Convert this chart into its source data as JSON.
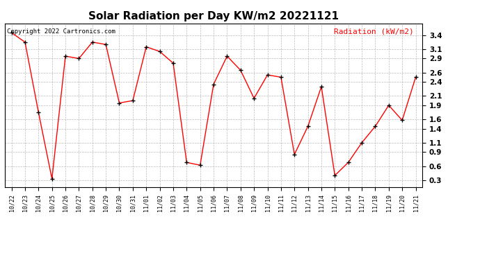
{
  "title": "Solar Radiation per Day KW/m2 20221121",
  "copyright": "Copyright 2022 Cartronics.com",
  "legend_label": "Radiation (kW/m2)",
  "dates": [
    "10/22",
    "10/23",
    "10/24",
    "10/25",
    "10/26",
    "10/27",
    "10/28",
    "10/29",
    "10/30",
    "10/31",
    "11/01",
    "11/02",
    "11/03",
    "11/04",
    "11/05",
    "11/06",
    "11/07",
    "11/08",
    "11/09",
    "11/10",
    "11/11",
    "11/12",
    "11/13",
    "11/14",
    "11/15",
    "11/16",
    "11/17",
    "11/18",
    "11/19",
    "11/20",
    "11/21"
  ],
  "values": [
    3.45,
    3.25,
    1.75,
    0.33,
    2.95,
    2.9,
    3.25,
    3.2,
    1.95,
    2.0,
    3.15,
    3.05,
    2.8,
    0.68,
    0.62,
    2.35,
    2.95,
    2.65,
    2.05,
    2.55,
    2.5,
    0.85,
    1.45,
    2.3,
    0.4,
    0.68,
    1.1,
    1.45,
    1.9,
    1.58,
    2.5
  ],
  "line_color": "red",
  "marker_color": "black",
  "marker": "+",
  "ylim": [
    0.15,
    3.65
  ],
  "yticks": [
    0.3,
    0.6,
    0.9,
    1.1,
    1.4,
    1.6,
    1.9,
    2.1,
    2.4,
    2.6,
    2.9,
    3.1,
    3.4
  ],
  "grid_color": "#bbbbbb",
  "background_color": "#ffffff",
  "title_fontsize": 11,
  "copyright_fontsize": 6.5,
  "legend_fontsize": 8,
  "tick_fontsize": 7.5,
  "xtick_fontsize": 6
}
